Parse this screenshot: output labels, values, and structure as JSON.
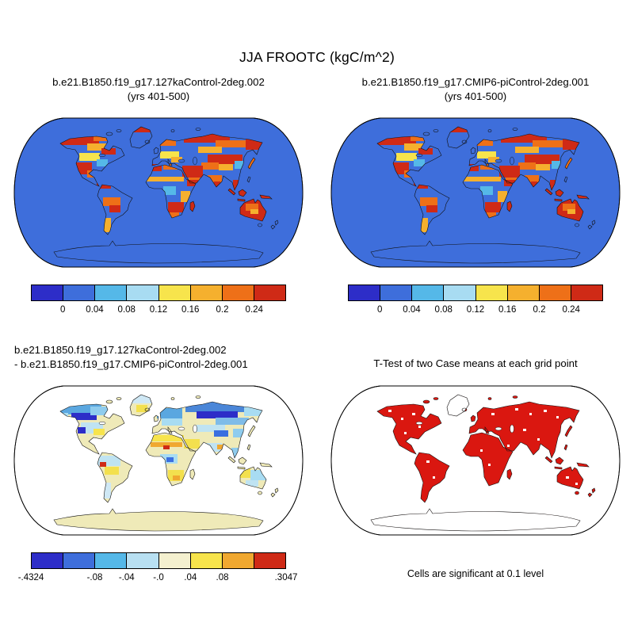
{
  "figure": {
    "title": "JJA FROOTC (kgC/m^2)",
    "background": "#ffffff"
  },
  "panels": [
    {
      "name": "case1",
      "title_line1": "b.e21.B1850.f19_g17.127kaControl-2deg.002",
      "title_line2": "(yrs 401-500)",
      "map": {
        "ocean": "#3e6edb",
        "land_base": "#3e6edb",
        "outline": "#000000"
      },
      "colorbar": {
        "colors": [
          "#2d2dc8",
          "#3e6edb",
          "#55b8e8",
          "#a8dcf2",
          "#f7e44c",
          "#f5b02e",
          "#ee7018",
          "#cf2a16"
        ],
        "ticks": [
          {
            "label": "0",
            "pos": 12.5
          },
          {
            "label": "0.04",
            "pos": 25
          },
          {
            "label": "0.08",
            "pos": 37.5
          },
          {
            "label": "0.12",
            "pos": 50
          },
          {
            "label": "0.16",
            "pos": 62.5
          },
          {
            "label": "0.2",
            "pos": 75
          },
          {
            "label": "0.24",
            "pos": 87.5
          }
        ]
      }
    },
    {
      "name": "case2",
      "title_line1": "b.e21.B1850.f19_g17.CMIP6-piControl-2deg.001",
      "title_line2": "(yrs 401-500)",
      "map": {
        "ocean": "#3e6edb",
        "land_base": "#3e6edb",
        "outline": "#000000"
      },
      "colorbar": {
        "colors": [
          "#2d2dc8",
          "#3e6edb",
          "#55b8e8",
          "#a8dcf2",
          "#f7e44c",
          "#f5b02e",
          "#ee7018",
          "#cf2a16"
        ],
        "ticks": [
          {
            "label": "0",
            "pos": 12.5
          },
          {
            "label": "0.04",
            "pos": 25
          },
          {
            "label": "0.08",
            "pos": 37.5
          },
          {
            "label": "0.12",
            "pos": 50
          },
          {
            "label": "0.16",
            "pos": 62.5
          },
          {
            "label": "0.2",
            "pos": 75
          },
          {
            "label": "0.24",
            "pos": 87.5
          }
        ]
      }
    },
    {
      "name": "difference",
      "title_line1": "b.e21.B1850.f19_g17.127kaControl-2deg.002",
      "title_line2": "- b.e21.B1850.f19_g17.CMIP6-piControl-2deg.001",
      "map": {
        "ocean": "#ffffff",
        "land_base": "#efeab8",
        "outline": "#000000"
      },
      "colorbar": {
        "colors": [
          "#2d2dc8",
          "#3e6edb",
          "#55b8e8",
          "#b8e0f2",
          "#f4f0cf",
          "#f7e44c",
          "#f0a830",
          "#cf2a16"
        ],
        "ticks": [
          {
            "label": "-.4324",
            "pos": 0
          },
          {
            "label": "-.08",
            "pos": 25
          },
          {
            "label": "-.04",
            "pos": 37.5
          },
          {
            "label": "-.0",
            "pos": 50
          },
          {
            "label": ".04",
            "pos": 62.5
          },
          {
            "label": ".08",
            "pos": 75
          },
          {
            "label": ".3047",
            "pos": 100
          }
        ]
      }
    },
    {
      "name": "ttest",
      "title_line1": "T-Test of two Case means at each grid point",
      "caption": "Cells are significant at 0.1 level",
      "map": {
        "ocean": "#ffffff",
        "land_base": "#da1710",
        "outline": "#000000",
        "not_significant": "#ffffff"
      }
    }
  ],
  "chart_data": [
    {
      "type": "heatmap",
      "subtype": "global-map",
      "projection": "robinson",
      "title": "b.e21.B1850.f19_g17.127kaControl-2deg.002 (yrs 401-500)",
      "variable": "FROOTC",
      "season": "JJA",
      "units": "kgC/m^2",
      "colorbar_levels": [
        0,
        0.04,
        0.08,
        0.12,
        0.16,
        0.2,
        0.24
      ],
      "colorbar_colors": [
        "#2d2dc8",
        "#3e6edb",
        "#55b8e8",
        "#a8dcf2",
        "#f7e44c",
        "#f5b02e",
        "#ee7018",
        "#cf2a16"
      ],
      "legend_position": "bottom",
      "description": "Mostly low (blue) values globally with high (red/orange) patches over northern high latitudes, deserts, Middle East, Australia and parts of South America and Africa."
    },
    {
      "type": "heatmap",
      "subtype": "global-map",
      "projection": "robinson",
      "title": "b.e21.B1850.f19_g17.CMIP6-piControl-2deg.001 (yrs 401-500)",
      "variable": "FROOTC",
      "season": "JJA",
      "units": "kgC/m^2",
      "colorbar_levels": [
        0,
        0.04,
        0.08,
        0.12,
        0.16,
        0.2,
        0.24
      ],
      "colorbar_colors": [
        "#2d2dc8",
        "#3e6edb",
        "#55b8e8",
        "#a8dcf2",
        "#f7e44c",
        "#f5b02e",
        "#ee7018",
        "#cf2a16"
      ],
      "legend_position": "bottom",
      "description": "Pattern nearly identical to the 127kaControl case: low values over most land, high values over arid zones and high northern latitudes."
    },
    {
      "type": "heatmap",
      "subtype": "global-map-difference",
      "projection": "robinson",
      "title": "b.e21.B1850.f19_g17.127kaControl-2deg.002 - b.e21.B1850.f19_g17.CMIP6-piControl-2deg.001",
      "variable": "FROOTC difference",
      "season": "JJA",
      "units": "kgC/m^2",
      "min": -0.4324,
      "max": 0.3047,
      "colorbar_levels": [
        -0.4324,
        -0.08,
        -0.04,
        -0.0,
        0.04,
        0.08,
        0.3047
      ],
      "colorbar_colors": [
        "#2d2dc8",
        "#3e6edb",
        "#55b8e8",
        "#b8e0f2",
        "#f4f0cf",
        "#f7e44c",
        "#f0a830",
        "#cf2a16"
      ],
      "legend_position": "bottom",
      "description": "Differences mostly small; negative (blue) over northern high latitudes and Eurasia, slightly positive (yellow/orange) over the Sahel, southern Africa and parts of the tropics."
    },
    {
      "type": "heatmap",
      "subtype": "significance-mask",
      "projection": "robinson",
      "title": "T-Test of two Case means at each grid point",
      "note": "Cells are significant at 0.1 level",
      "significant_color": "#da1710",
      "description": "Nearly all vegetated land cells significant (red); Antarctica, Greenland and scattered cells not significant (white)."
    }
  ]
}
